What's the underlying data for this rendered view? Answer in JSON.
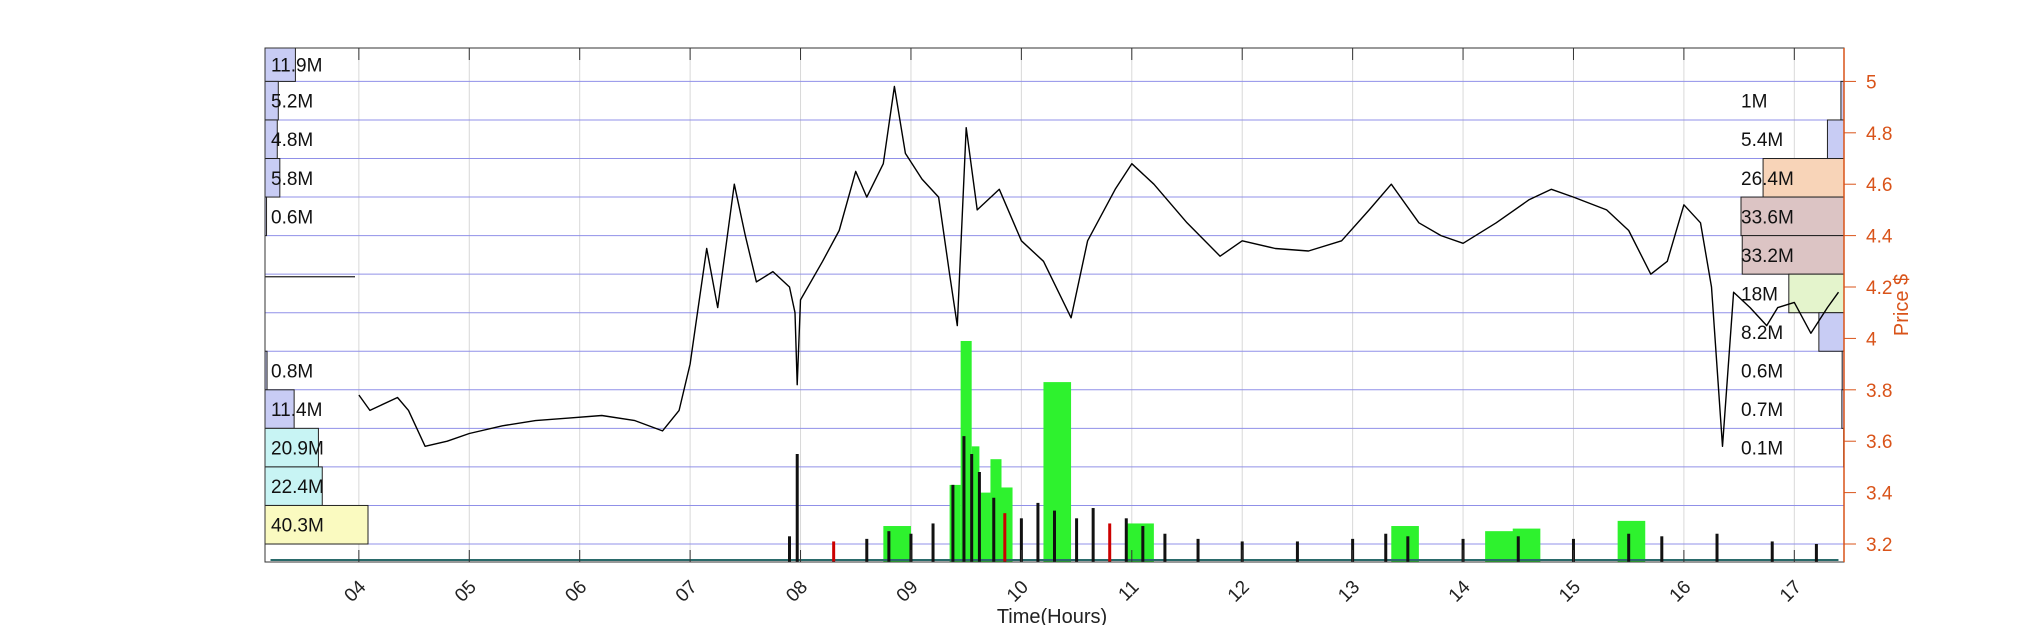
{
  "chart_data": {
    "type": "line",
    "title": "",
    "xlabel": "Time(Hours)",
    "ylabel_right": "Price $",
    "x_ticks": [
      "04",
      "05",
      "06",
      "07",
      "08",
      "09",
      "10",
      "11",
      "12",
      "13",
      "14",
      "15",
      "16",
      "17"
    ],
    "xlim": [
      3.15,
      17.45
    ],
    "ylim": [
      3.13,
      5.13
    ],
    "y_ticks": [
      3.2,
      3.4,
      3.6,
      3.8,
      4,
      4.2,
      4.4,
      4.6,
      4.8,
      5
    ],
    "y_tick_labels": [
      "3.2",
      "3.4",
      "3.6",
      "3.8",
      "4",
      "4.2",
      "4.4",
      "4.6",
      "4.8",
      "5"
    ],
    "grid": true,
    "price_series": {
      "name": "",
      "points": [
        [
          4.0,
          3.78
        ],
        [
          4.1,
          3.72
        ],
        [
          4.2,
          3.74
        ],
        [
          4.35,
          3.77
        ],
        [
          4.45,
          3.72
        ],
        [
          4.6,
          3.58
        ],
        [
          4.8,
          3.6
        ],
        [
          5.0,
          3.63
        ],
        [
          5.3,
          3.66
        ],
        [
          5.6,
          3.68
        ],
        [
          5.9,
          3.69
        ],
        [
          6.2,
          3.7
        ],
        [
          6.5,
          3.68
        ],
        [
          6.75,
          3.64
        ],
        [
          6.9,
          3.72
        ],
        [
          7.0,
          3.9
        ],
        [
          7.05,
          4.05
        ],
        [
          7.15,
          4.35
        ],
        [
          7.25,
          4.12
        ],
        [
          7.4,
          4.6
        ],
        [
          7.5,
          4.4
        ],
        [
          7.6,
          4.22
        ],
        [
          7.75,
          4.26
        ],
        [
          7.9,
          4.2
        ],
        [
          7.95,
          4.1
        ],
        [
          7.97,
          3.82
        ],
        [
          8.0,
          4.15
        ],
        [
          8.2,
          4.3
        ],
        [
          8.35,
          4.42
        ],
        [
          8.5,
          4.65
        ],
        [
          8.6,
          4.55
        ],
        [
          8.75,
          4.68
        ],
        [
          8.85,
          4.98
        ],
        [
          8.95,
          4.72
        ],
        [
          9.1,
          4.62
        ],
        [
          9.25,
          4.55
        ],
        [
          9.35,
          4.25
        ],
        [
          9.42,
          4.05
        ],
        [
          9.5,
          4.82
        ],
        [
          9.6,
          4.5
        ],
        [
          9.8,
          4.58
        ],
        [
          10.0,
          4.38
        ],
        [
          10.2,
          4.3
        ],
        [
          10.45,
          4.08
        ],
        [
          10.6,
          4.38
        ],
        [
          10.85,
          4.58
        ],
        [
          11.0,
          4.68
        ],
        [
          11.2,
          4.6
        ],
        [
          11.5,
          4.45
        ],
        [
          11.8,
          4.32
        ],
        [
          12.0,
          4.38
        ],
        [
          12.3,
          4.35
        ],
        [
          12.6,
          4.34
        ],
        [
          12.9,
          4.38
        ],
        [
          13.15,
          4.5
        ],
        [
          13.35,
          4.6
        ],
        [
          13.6,
          4.45
        ],
        [
          13.8,
          4.4
        ],
        [
          14.0,
          4.37
        ],
        [
          14.3,
          4.45
        ],
        [
          14.6,
          4.54
        ],
        [
          14.8,
          4.58
        ],
        [
          15.0,
          4.55
        ],
        [
          15.3,
          4.5
        ],
        [
          15.5,
          4.42
        ],
        [
          15.7,
          4.25
        ],
        [
          15.85,
          4.3
        ],
        [
          16.0,
          4.52
        ],
        [
          16.15,
          4.45
        ],
        [
          16.25,
          4.2
        ],
        [
          16.35,
          3.58
        ],
        [
          16.45,
          4.18
        ],
        [
          16.6,
          4.12
        ],
        [
          16.75,
          4.05
        ],
        [
          16.85,
          4.12
        ],
        [
          17.0,
          4.14
        ],
        [
          17.15,
          4.02
        ],
        [
          17.3,
          4.12
        ],
        [
          17.4,
          4.18
        ]
      ]
    },
    "volume_bars": [
      {
        "x": 7.9,
        "top": 3.23,
        "color": "#111111"
      },
      {
        "x": 7.97,
        "top": 3.55,
        "color": "#111111"
      },
      {
        "x": 8.3,
        "top": 3.21,
        "color": "#cc0000"
      },
      {
        "x": 8.6,
        "top": 3.22,
        "color": "#111111"
      },
      {
        "x": 8.8,
        "top": 3.25,
        "color": "#111111"
      },
      {
        "x": 9.0,
        "top": 3.24,
        "color": "#111111"
      },
      {
        "x": 9.2,
        "top": 3.28,
        "color": "#111111"
      },
      {
        "x": 9.38,
        "top": 3.43,
        "color": "#111111"
      },
      {
        "x": 9.48,
        "top": 3.62,
        "color": "#111111"
      },
      {
        "x": 9.55,
        "top": 3.55,
        "color": "#111111"
      },
      {
        "x": 9.62,
        "top": 3.48,
        "color": "#111111"
      },
      {
        "x": 9.75,
        "top": 3.38,
        "color": "#111111"
      },
      {
        "x": 9.85,
        "top": 3.32,
        "color": "#cc0000"
      },
      {
        "x": 10.0,
        "top": 3.3,
        "color": "#111111"
      },
      {
        "x": 10.15,
        "top": 3.36,
        "color": "#111111"
      },
      {
        "x": 10.3,
        "top": 3.33,
        "color": "#111111"
      },
      {
        "x": 10.5,
        "top": 3.3,
        "color": "#111111"
      },
      {
        "x": 10.65,
        "top": 3.34,
        "color": "#111111"
      },
      {
        "x": 10.8,
        "top": 3.28,
        "color": "#cc0000"
      },
      {
        "x": 10.95,
        "top": 3.3,
        "color": "#111111"
      },
      {
        "x": 11.1,
        "top": 3.27,
        "color": "#111111"
      },
      {
        "x": 11.3,
        "top": 3.24,
        "color": "#111111"
      },
      {
        "x": 11.6,
        "top": 3.22,
        "color": "#111111"
      },
      {
        "x": 12.0,
        "top": 3.21,
        "color": "#111111"
      },
      {
        "x": 12.5,
        "top": 3.21,
        "color": "#111111"
      },
      {
        "x": 13.0,
        "top": 3.22,
        "color": "#111111"
      },
      {
        "x": 13.3,
        "top": 3.24,
        "color": "#111111"
      },
      {
        "x": 13.5,
        "top": 3.23,
        "color": "#111111"
      },
      {
        "x": 14.0,
        "top": 3.22,
        "color": "#111111"
      },
      {
        "x": 14.5,
        "top": 3.23,
        "color": "#111111"
      },
      {
        "x": 15.0,
        "top": 3.22,
        "color": "#111111"
      },
      {
        "x": 15.5,
        "top": 3.24,
        "color": "#111111"
      },
      {
        "x": 15.8,
        "top": 3.23,
        "color": "#111111"
      },
      {
        "x": 16.3,
        "top": 3.24,
        "color": "#111111"
      },
      {
        "x": 16.8,
        "top": 3.21,
        "color": "#111111"
      },
      {
        "x": 17.2,
        "top": 3.2,
        "color": "#111111"
      }
    ],
    "green_volume_blocks": [
      {
        "x0": 8.75,
        "x1": 9.0,
        "top": 3.27
      },
      {
        "x0": 9.35,
        "x1": 9.45,
        "top": 3.43
      },
      {
        "x0": 9.45,
        "x1": 9.55,
        "top": 3.99
      },
      {
        "x0": 9.55,
        "x1": 9.62,
        "top": 3.58
      },
      {
        "x0": 9.62,
        "x1": 9.72,
        "top": 3.4
      },
      {
        "x0": 9.72,
        "x1": 9.82,
        "top": 3.53
      },
      {
        "x0": 9.82,
        "x1": 9.92,
        "top": 3.42
      },
      {
        "x0": 10.2,
        "x1": 10.45,
        "top": 3.83
      },
      {
        "x0": 10.95,
        "x1": 11.2,
        "top": 3.28
      },
      {
        "x0": 13.35,
        "x1": 13.6,
        "top": 3.27
      },
      {
        "x0": 14.2,
        "x1": 14.5,
        "top": 3.25
      },
      {
        "x0": 14.45,
        "x1": 14.7,
        "top": 3.26
      },
      {
        "x0": 15.4,
        "x1": 15.65,
        "top": 3.29
      }
    ],
    "left_volume_profile": [
      {
        "label": "11.9M",
        "value": 11.9,
        "lo": 5.0,
        "hi": 5.13,
        "color": "#c8ccf4"
      },
      {
        "label": "5.2M",
        "value": 5.2,
        "lo": 4.85,
        "hi": 5.0,
        "color": "#c8ccf4"
      },
      {
        "label": "4.8M",
        "value": 4.8,
        "lo": 4.7,
        "hi": 4.85,
        "color": "#c8ccf4"
      },
      {
        "label": "5.8M",
        "value": 5.8,
        "lo": 4.55,
        "hi": 4.7,
        "color": "#c8ccf4"
      },
      {
        "label": "0.6M",
        "value": 0.6,
        "lo": 4.4,
        "hi": 4.55,
        "color": "#c8ccf4"
      },
      {
        "label": "0.8M",
        "value": 0.8,
        "lo": 3.8,
        "hi": 3.95,
        "color": "#c8ccf4"
      },
      {
        "label": "11.4M",
        "value": 11.4,
        "lo": 3.65,
        "hi": 3.8,
        "color": "#c8ccf4"
      },
      {
        "label": "20.9M",
        "value": 20.9,
        "lo": 3.5,
        "hi": 3.65,
        "color": "#c8f4f4"
      },
      {
        "label": "22.4M",
        "value": 22.4,
        "lo": 3.35,
        "hi": 3.5,
        "color": "#c8f4f4"
      },
      {
        "label": "40.3M",
        "value": 40.3,
        "lo": 3.2,
        "hi": 3.35,
        "color": "#fafac0"
      }
    ],
    "right_volume_profile": [
      {
        "label": "1M",
        "value": 1,
        "lo": 4.85,
        "hi": 5.0,
        "color": "#c8ccf4"
      },
      {
        "label": "5.4M",
        "value": 5.4,
        "lo": 4.7,
        "hi": 4.85,
        "color": "#c8ccf4"
      },
      {
        "label": "26.4M",
        "value": 26.4,
        "lo": 4.55,
        "hi": 4.7,
        "color": "#f8d4b8"
      },
      {
        "label": "33.6M",
        "value": 33.6,
        "lo": 4.4,
        "hi": 4.55,
        "color": "#dcc4c4"
      },
      {
        "label": "33.2M",
        "value": 33.2,
        "lo": 4.25,
        "hi": 4.4,
        "color": "#dcc4c4"
      },
      {
        "label": "18M",
        "value": 18,
        "lo": 4.1,
        "hi": 4.25,
        "color": "#e4f4cc"
      },
      {
        "label": "8.2M",
        "value": 8.2,
        "lo": 3.95,
        "hi": 4.1,
        "color": "#c8ccf4"
      },
      {
        "label": "0.6M",
        "value": 0.6,
        "lo": 3.8,
        "hi": 3.95,
        "color": "#c8ccf4"
      },
      {
        "label": "0.7M",
        "value": 0.7,
        "lo": 3.65,
        "hi": 3.8,
        "color": "#c8ccf4"
      },
      {
        "label": "0.1M",
        "value": 0.1,
        "lo": 3.5,
        "hi": 3.65,
        "color": "#c8ccf4"
      }
    ],
    "colors": {
      "price_line": "#000000",
      "right_axis": "#d95319",
      "gridline": "#9090e8",
      "volume_green": "#2ef22e",
      "volume_red": "#cc0000",
      "volume_black": "#111111"
    }
  }
}
